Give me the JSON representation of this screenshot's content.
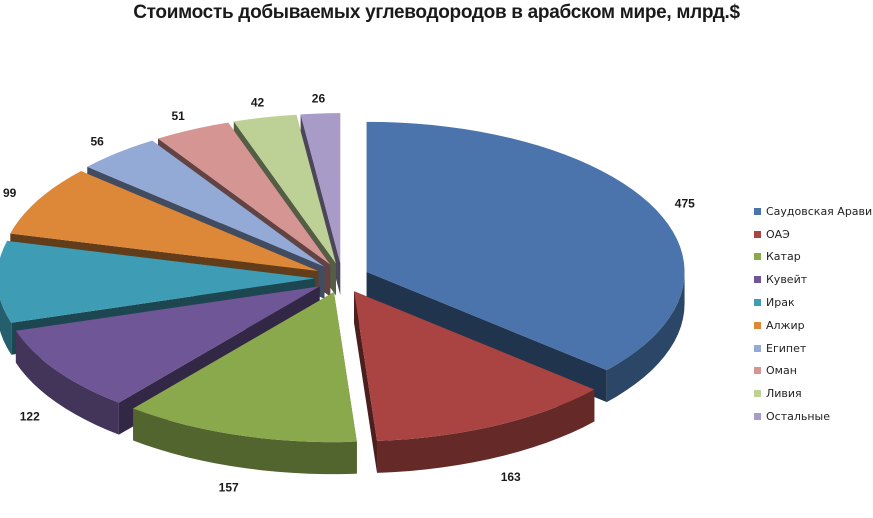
{
  "chart_data": {
    "type": "pie",
    "title": "Стоимость добываемых углеводородов в арабском мире, млрд.$",
    "categories": [
      "Саудовская Аравия",
      "ОАЭ",
      "Катар",
      "Кувейт",
      "Ирак",
      "Алжир",
      "Египет",
      "Оман",
      "Ливия",
      "Остальные"
    ],
    "values": [
      475,
      163,
      157,
      122,
      115,
      99,
      56,
      51,
      42,
      26
    ],
    "colors": [
      "#4a74ab",
      "#a94442",
      "#8aa84c",
      "#6f5696",
      "#3e9db5",
      "#dd8838",
      "#93a9d6",
      "#d59593",
      "#bdd196",
      "#a99bc8"
    ],
    "legend_position": "right",
    "style": "3d-exploded"
  }
}
